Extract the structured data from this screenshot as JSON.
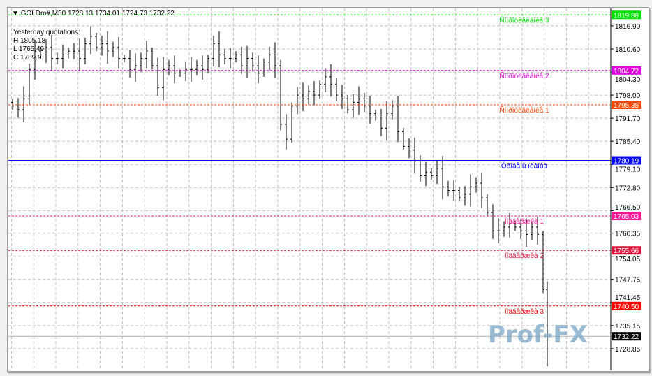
{
  "header": {
    "symbol": "GOLDm#,M30",
    "ohlc": "1728.13 1734.01 1724.73 1732.22"
  },
  "yesterday": {
    "title": "Yesterday quotations:",
    "high": "H 1805.18",
    "low": "L 1765.49",
    "close": "C 1789.9"
  },
  "watermark": "Prof-FX",
  "colors": {
    "bars": "#000000",
    "grid": "#c0c0c0",
    "watermark": "#7fa9c8"
  },
  "chart_data": {
    "type": "ohlc",
    "ylim": [
      1726.5,
      1821
    ],
    "yticks": [
      "1816.90",
      "1810.60",
      "1804.30",
      "1798.00",
      "1791.70",
      "1785.40",
      "1779.10",
      "1772.80",
      "1766.50",
      "1760.35",
      "1754.05",
      "1747.75",
      "1741.45",
      "1735.15",
      "1728.85"
    ],
    "grid": true,
    "closes": [
      1795,
      1794,
      1797,
      1805,
      1810,
      1809,
      1811,
      1808,
      1808,
      1809,
      1810,
      1810,
      1808,
      1812,
      1814,
      1811,
      1812,
      1810,
      1811,
      1808,
      1808,
      1805,
      1806,
      1808,
      1810,
      1806,
      1800,
      1805,
      1806,
      1804,
      1804,
      1805,
      1805,
      1806,
      1805,
      1808,
      1812,
      1809,
      1808,
      1808,
      1809,
      1806,
      1808,
      1806,
      1804,
      1807,
      1809,
      1806,
      1790,
      1786,
      1795,
      1798,
      1797,
      1799,
      1798,
      1801,
      1803,
      1801,
      1798,
      1797,
      1794,
      1796,
      1797,
      1795,
      1793,
      1792,
      1789,
      1793,
      1795,
      1788,
      1784,
      1783,
      1780,
      1776,
      1777,
      1776,
      1778,
      1773,
      1772,
      1772,
      1770,
      1771,
      1773,
      1774,
      1770,
      1766,
      1761,
      1761,
      1762,
      1763,
      1762,
      1761,
      1760,
      1762,
      1760,
      1745,
      1732.22
    ],
    "levels": [
      {
        "price": 1819.88,
        "label": "1819.88",
        "name": "Ñîïðîòèâëåíèå 3",
        "color": "#00e000",
        "style": "dashed"
      },
      {
        "price": 1804.72,
        "label": "1804.72",
        "name": "Ñîïðîòèâëåíèå 2",
        "color": "#e000e0",
        "style": "dashed"
      },
      {
        "price": 1795.35,
        "label": "1795.35",
        "name": "Ñîïðîòèâëåíèå 1",
        "color": "#ff4500",
        "style": "dashed"
      },
      {
        "price": 1780.19,
        "label": "1780.19",
        "name": "Óðîâåíü ïèâîòà",
        "color": "#0000ff",
        "style": "solid"
      },
      {
        "price": 1765.03,
        "label": "1765.03",
        "name": "Ïîääåðæêà 1",
        "color": "#ff1493",
        "style": "dashed"
      },
      {
        "price": 1755.66,
        "label": "1755.66",
        "name": "Ïîääåðæêà 2",
        "color": "#dc143c",
        "style": "dashed"
      },
      {
        "price": 1740.5,
        "label": "1740.50",
        "name": "Ïîääåðæêà 3",
        "color": "#ff0000",
        "style": "dashed"
      }
    ],
    "bid": {
      "price": 1732.22,
      "label": "1732.22",
      "color": "#000000"
    }
  }
}
